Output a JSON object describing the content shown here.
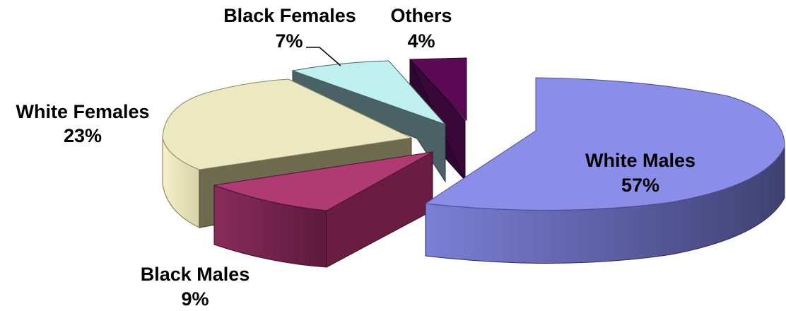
{
  "chart_data": {
    "type": "pie",
    "title": "",
    "slices": [
      {
        "name": "White Males",
        "value": 57,
        "label": "57%",
        "color": "#8a8ee8"
      },
      {
        "name": "Black Males",
        "value": 9,
        "label": "9%",
        "color": "#8b2d5c"
      },
      {
        "name": "White Females",
        "value": 23,
        "label": "23%",
        "color": "#ece8bf"
      },
      {
        "name": "Black Females",
        "value": 7,
        "label": "7%",
        "color": "#bff0f0"
      },
      {
        "name": "Others",
        "value": 4,
        "label": "4%",
        "color": "#5c0a55"
      }
    ],
    "style": "3d-exploded"
  }
}
